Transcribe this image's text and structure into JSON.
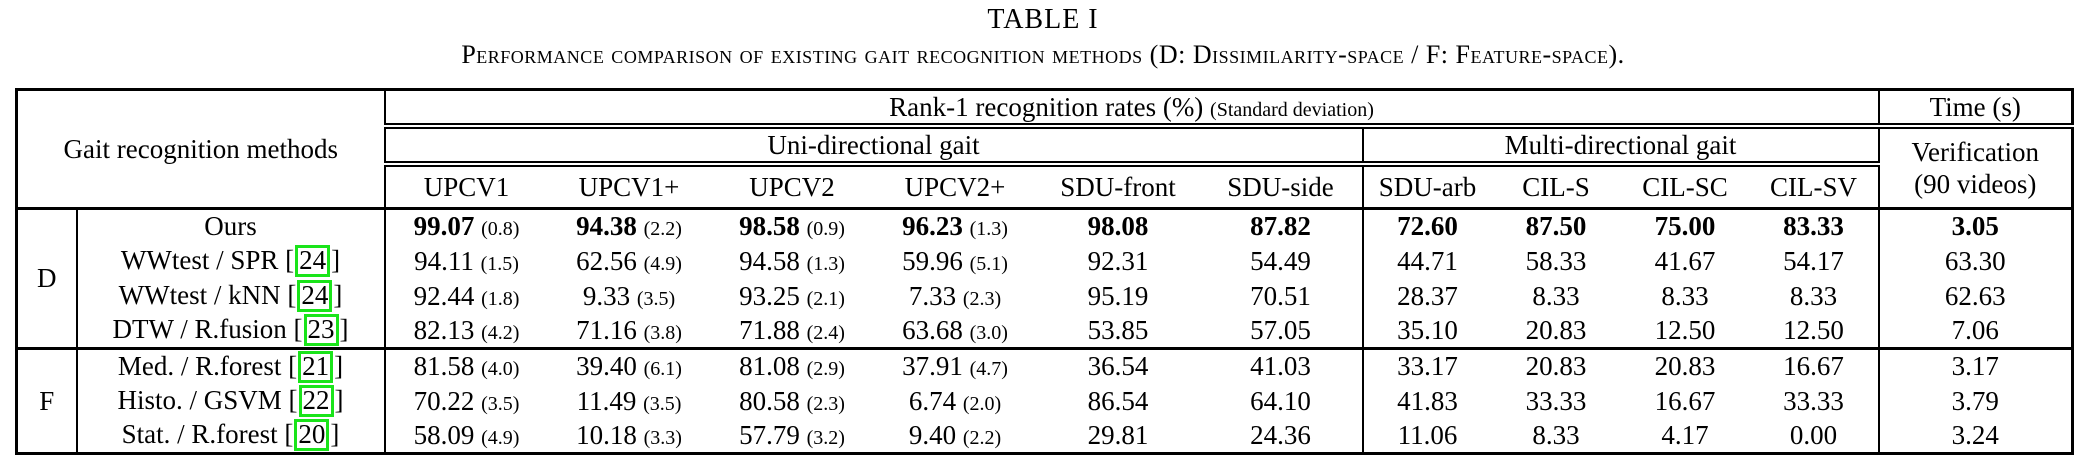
{
  "colors": {
    "citation_box": "#1ae41a",
    "text": "#000000",
    "background": "#ffffff"
  },
  "title": "TABLE I",
  "caption": "Performance comparison of existing gait recognition methods (D: Dissimilarity-space / F: Feature-space).",
  "header": {
    "methods": "Gait recognition methods",
    "rank1": "Rank-1 recognition rates (%)",
    "rank1_note": "(Standard deviation)",
    "time": "Time (s)",
    "uni": "Uni-directional gait",
    "multi": "Multi-directional gait",
    "verification_line1": "Verification",
    "verification_line2": "(90 videos)",
    "columns": [
      "UPCV1",
      "UPCV1+",
      "UPCV2",
      "UPCV2+",
      "SDU-front",
      "SDU-side",
      "SDU-arb",
      "CIL-S",
      "CIL-SC",
      "CIL-SV"
    ]
  },
  "groups": [
    {
      "label": "D",
      "rows": [
        {
          "method": "Ours",
          "citation": null,
          "bold": true,
          "values": [
            "99.07",
            "94.38",
            "98.58",
            "96.23",
            "98.08",
            "87.82",
            "72.60",
            "87.50",
            "75.00",
            "83.33"
          ],
          "stds": [
            "0.8",
            "2.2",
            "0.9",
            "1.3"
          ],
          "time": "3.05"
        },
        {
          "method": "WWtest / SPR",
          "citation": "24",
          "bold": false,
          "values": [
            "94.11",
            "62.56",
            "94.58",
            "59.96",
            "92.31",
            "54.49",
            "44.71",
            "58.33",
            "41.67",
            "54.17"
          ],
          "stds": [
            "1.5",
            "4.9",
            "1.3",
            "5.1"
          ],
          "time": "63.30"
        },
        {
          "method": "WWtest / kNN",
          "citation": "24",
          "bold": false,
          "values": [
            "92.44",
            "9.33",
            "93.25",
            "7.33",
            "95.19",
            "70.51",
            "28.37",
            "8.33",
            "8.33",
            "8.33"
          ],
          "stds": [
            "1.8",
            "3.5",
            "2.1",
            "2.3"
          ],
          "time": "62.63"
        },
        {
          "method": "DTW / R.fusion",
          "citation": "23",
          "bold": false,
          "values": [
            "82.13",
            "71.16",
            "71.88",
            "63.68",
            "53.85",
            "57.05",
            "35.10",
            "20.83",
            "12.50",
            "12.50"
          ],
          "stds": [
            "4.2",
            "3.8",
            "2.4",
            "3.0"
          ],
          "time": "7.06"
        }
      ]
    },
    {
      "label": "F",
      "rows": [
        {
          "method": "Med. / R.forest",
          "citation": "21",
          "bold": false,
          "values": [
            "81.58",
            "39.40",
            "81.08",
            "37.91",
            "36.54",
            "41.03",
            "33.17",
            "20.83",
            "20.83",
            "16.67"
          ],
          "stds": [
            "4.0",
            "6.1",
            "2.9",
            "4.7"
          ],
          "time": "3.17"
        },
        {
          "method": "Histo. / GSVM",
          "citation": "22",
          "bold": false,
          "values": [
            "70.22",
            "11.49",
            "80.58",
            "6.74",
            "86.54",
            "64.10",
            "41.83",
            "33.33",
            "16.67",
            "33.33"
          ],
          "stds": [
            "3.5",
            "3.5",
            "2.3",
            "2.0"
          ],
          "time": "3.79"
        },
        {
          "method": "Stat. / R.forest",
          "citation": "20",
          "bold": false,
          "values": [
            "58.09",
            "10.18",
            "57.79",
            "9.40",
            "29.81",
            "24.36",
            "11.06",
            "8.33",
            "4.17",
            "0.00"
          ],
          "stds": [
            "4.9",
            "3.3",
            "3.2",
            "2.2"
          ],
          "time": "3.24"
        }
      ]
    }
  ]
}
